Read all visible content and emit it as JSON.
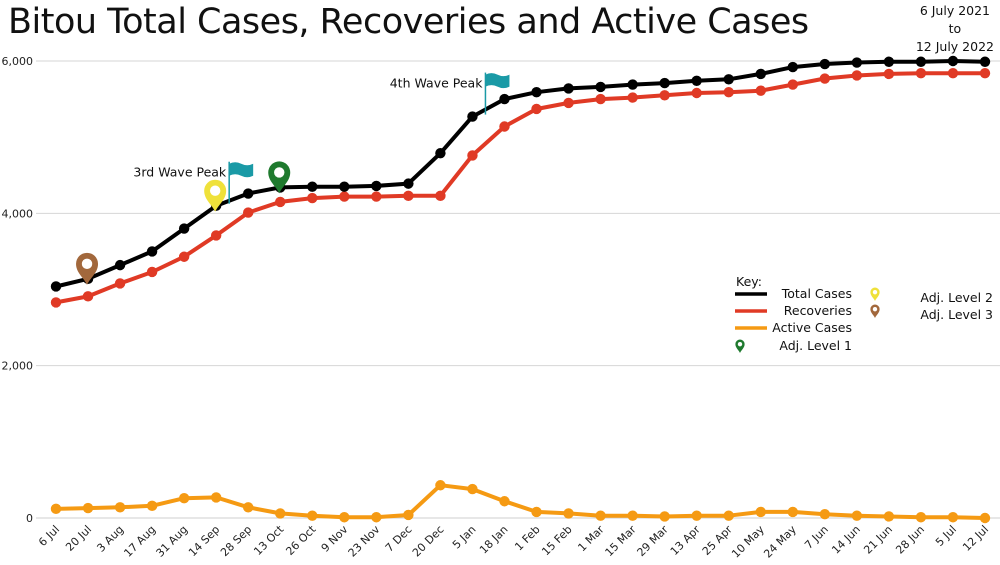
{
  "chart_data": {
    "type": "line",
    "title": "Bitou Total Cases, Recoveries and Active Cases",
    "period": {
      "from": "6 July 2021",
      "to_word": "to",
      "to": "12 July 2022"
    },
    "categories": [
      "6 Jul",
      "20 Jul",
      "3 Aug",
      "17 Aug",
      "31 Aug",
      "14 Sep",
      "28 Sep",
      "13 Oct",
      "26 Oct",
      "9 Nov",
      "23 Nov",
      "7 Dec",
      "20 Dec",
      "5 Jan",
      "18 Jan",
      "1 Feb",
      "15 Feb",
      "1 Mar",
      "15 Mar",
      "29 Mar",
      "13 Apr",
      "25 Apr",
      "10 May",
      "24 May",
      "7 Jun",
      "14 Jun",
      "21 Jun",
      "28 Jun",
      "5 Jul",
      "12 Jul"
    ],
    "y_ticks": [
      "0",
      "2,000",
      "4,000",
      "6,000"
    ],
    "ylim": [
      0,
      6000
    ],
    "grid": "horizontal",
    "series": [
      {
        "name": "Total Cases",
        "color": "#000000",
        "values": [
          3040,
          3140,
          3320,
          3500,
          3800,
          4100,
          4260,
          4340,
          4350,
          4350,
          4360,
          4390,
          4790,
          5270,
          5500,
          5590,
          5640,
          5660,
          5690,
          5710,
          5740,
          5760,
          5830,
          5920,
          5960,
          5980,
          5990,
          5990,
          6000,
          5990
        ]
      },
      {
        "name": "Recoveries",
        "color": "#e03a25",
        "values": [
          2830,
          2910,
          3080,
          3230,
          3430,
          3710,
          4010,
          4150,
          4200,
          4220,
          4220,
          4230,
          4230,
          4760,
          5140,
          5370,
          5450,
          5500,
          5520,
          5550,
          5580,
          5590,
          5610,
          5690,
          5770,
          5810,
          5830,
          5840,
          5840,
          5840
        ]
      },
      {
        "name": "Active Cases",
        "color": "#f59a13",
        "values": [
          120,
          130,
          140,
          160,
          260,
          270,
          140,
          60,
          30,
          10,
          10,
          40,
          430,
          380,
          220,
          80,
          60,
          30,
          30,
          20,
          30,
          30,
          80,
          80,
          50,
          30,
          20,
          10,
          10,
          0
        ]
      }
    ],
    "annotations": [
      {
        "text": "3rd Wave Peak",
        "category": "14 Sep",
        "value": 4100,
        "flag_color": "#1a9aa6"
      },
      {
        "text": "4th Wave Peak",
        "category": "5 Jan",
        "value": 5270,
        "flag_color": "#1a9aa6"
      }
    ],
    "markers": [
      {
        "label": "Adj. Level 3",
        "category": "20 Jul",
        "value": 3140,
        "color": "#a2683c"
      },
      {
        "label": "Adj. Level 2",
        "category": "14 Sep",
        "value": 4100,
        "color": "#efe13a"
      },
      {
        "label": "Adj. Level 1",
        "category": "13 Oct",
        "value": 4340,
        "color": "#1f7a2e"
      }
    ],
    "legend": {
      "title": "Key:",
      "placement": "right-middle",
      "items": [
        {
          "label": "Total Cases",
          "kind": "line",
          "color": "#000000"
        },
        {
          "label": "Recoveries",
          "kind": "line",
          "color": "#e03a25"
        },
        {
          "label": "Active Cases",
          "kind": "line",
          "color": "#f59a13"
        },
        {
          "label": "Adj. Level 1",
          "kind": "pin",
          "color": "#1f7a2e"
        },
        {
          "label": "Adj. Level 2",
          "kind": "pin",
          "color": "#efe13a"
        },
        {
          "label": "Adj. Level 3",
          "kind": "pin",
          "color": "#a2683c"
        }
      ]
    }
  }
}
